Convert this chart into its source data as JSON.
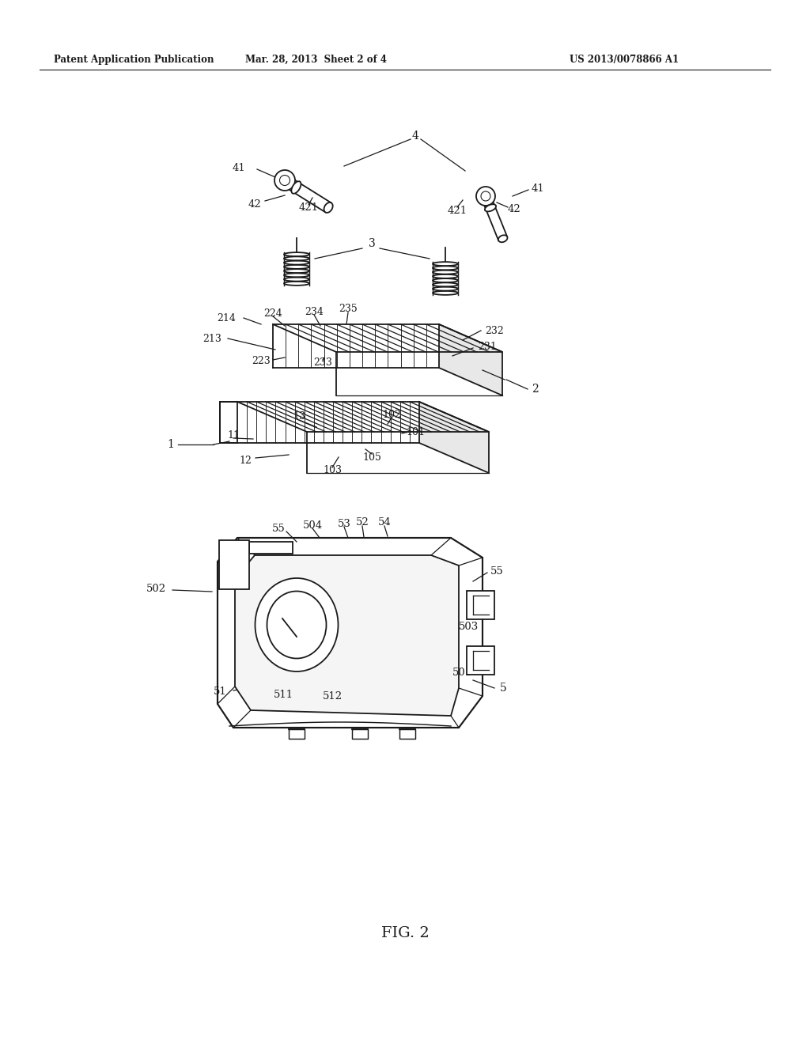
{
  "bg_color": "#ffffff",
  "line_color": "#1a1a1a",
  "header_left": "Patent Application Publication",
  "header_center": "Mar. 28, 2013  Sheet 2 of 4",
  "header_right": "US 2013/0078866 A1",
  "figure_label": "FIG. 2",
  "fig_width": 10.24,
  "fig_height": 13.2,
  "dpi": 100
}
